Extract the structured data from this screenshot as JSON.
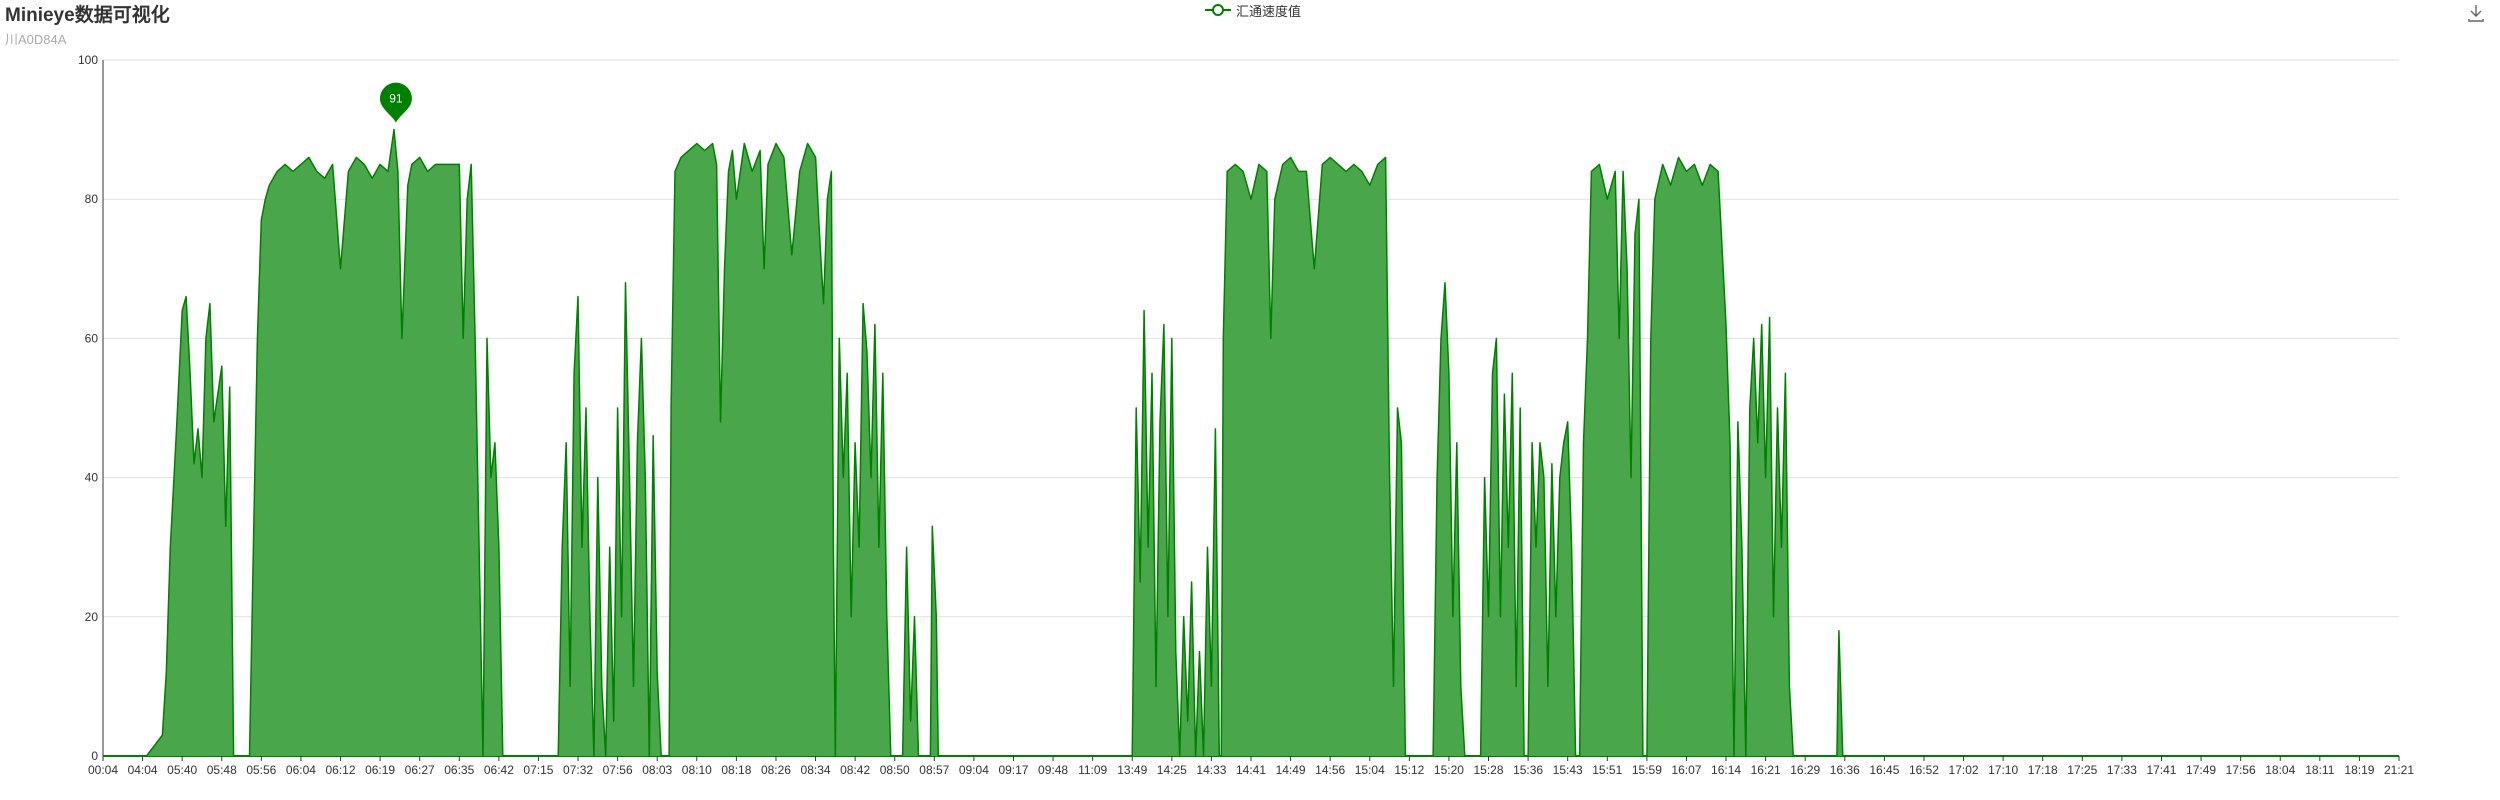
{
  "title": "Minieye数据可视化",
  "subtitle": "川A0D84A",
  "legend": {
    "label": "汇通速度值",
    "icon": "line-circle-icon"
  },
  "toolbar": {
    "download_icon": "download-icon"
  },
  "colors": {
    "series": "#008000",
    "area": "#4aa64a",
    "grid": "#e0e0e0",
    "axis": "#333333"
  },
  "chart_data": {
    "type": "area",
    "title": "Minieye数据可视化",
    "subtitle": "川A0D84A",
    "xlabel": "",
    "ylabel": "",
    "ylim": [
      0,
      100
    ],
    "yticks": [
      0,
      20,
      40,
      60,
      80,
      100
    ],
    "grid": true,
    "legend_position": "top-center",
    "xticks": [
      "00:04",
      "04:04",
      "05:40",
      "05:48",
      "05:56",
      "06:04",
      "06:12",
      "06:19",
      "06:27",
      "06:35",
      "06:42",
      "07:15",
      "07:32",
      "07:56",
      "08:03",
      "08:10",
      "08:18",
      "08:26",
      "08:34",
      "08:42",
      "08:50",
      "08:57",
      "09:04",
      "09:17",
      "09:48",
      "11:09",
      "13:49",
      "14:25",
      "14:33",
      "14:41",
      "14:49",
      "14:56",
      "15:04",
      "15:12",
      "15:20",
      "15:28",
      "15:36",
      "15:43",
      "15:51",
      "15:59",
      "16:07",
      "16:14",
      "16:21",
      "16:29",
      "16:36",
      "16:45",
      "16:52",
      "17:02",
      "17:10",
      "17:18",
      "17:25",
      "17:33",
      "17:41",
      "17:49",
      "17:56",
      "18:04",
      "18:11",
      "18:19",
      "21:21"
    ],
    "max_marker": {
      "x_tick_index": 7.4,
      "value": 91,
      "label": "91"
    },
    "series": [
      {
        "name": "汇通速度值",
        "points": [
          [
            0,
            0
          ],
          [
            1.1,
            0
          ],
          [
            1.5,
            3
          ],
          [
            1.6,
            12
          ],
          [
            1.7,
            30
          ],
          [
            1.85,
            46
          ],
          [
            2.0,
            64
          ],
          [
            2.1,
            66
          ],
          [
            2.2,
            55
          ],
          [
            2.3,
            42
          ],
          [
            2.4,
            47
          ],
          [
            2.5,
            40
          ],
          [
            2.6,
            60
          ],
          [
            2.7,
            65
          ],
          [
            2.8,
            48
          ],
          [
            2.9,
            52
          ],
          [
            3.0,
            56
          ],
          [
            3.1,
            33
          ],
          [
            3.2,
            53
          ],
          [
            3.3,
            0
          ],
          [
            3.7,
            0
          ],
          [
            3.8,
            30
          ],
          [
            3.9,
            60
          ],
          [
            4.0,
            77
          ],
          [
            4.1,
            80
          ],
          [
            4.2,
            82
          ],
          [
            4.4,
            84
          ],
          [
            4.6,
            85
          ],
          [
            4.8,
            84
          ],
          [
            5.0,
            85
          ],
          [
            5.2,
            86
          ],
          [
            5.4,
            84
          ],
          [
            5.6,
            83
          ],
          [
            5.8,
            85
          ],
          [
            6.0,
            70
          ],
          [
            6.2,
            84
          ],
          [
            6.4,
            86
          ],
          [
            6.6,
            85
          ],
          [
            6.8,
            83
          ],
          [
            7.0,
            85
          ],
          [
            7.2,
            84
          ],
          [
            7.35,
            90
          ],
          [
            7.45,
            84
          ],
          [
            7.55,
            60
          ],
          [
            7.7,
            82
          ],
          [
            7.8,
            85
          ],
          [
            8.0,
            86
          ],
          [
            8.2,
            84
          ],
          [
            8.4,
            85
          ],
          [
            8.6,
            85
          ],
          [
            8.8,
            85
          ],
          [
            9.0,
            85
          ],
          [
            9.1,
            60
          ],
          [
            9.2,
            80
          ],
          [
            9.3,
            85
          ],
          [
            9.4,
            60
          ],
          [
            9.5,
            30
          ],
          [
            9.6,
            0
          ],
          [
            9.7,
            60
          ],
          [
            9.8,
            40
          ],
          [
            9.9,
            45
          ],
          [
            10.0,
            30
          ],
          [
            10.1,
            0
          ],
          [
            11.5,
            0
          ],
          [
            11.6,
            30
          ],
          [
            11.7,
            45
          ],
          [
            11.8,
            10
          ],
          [
            11.9,
            55
          ],
          [
            12.0,
            66
          ],
          [
            12.1,
            30
          ],
          [
            12.2,
            50
          ],
          [
            12.3,
            20
          ],
          [
            12.4,
            0
          ],
          [
            12.5,
            40
          ],
          [
            12.6,
            10
          ],
          [
            12.7,
            0
          ],
          [
            12.8,
            30
          ],
          [
            12.9,
            5
          ],
          [
            13.0,
            50
          ],
          [
            13.1,
            20
          ],
          [
            13.2,
            68
          ],
          [
            13.3,
            40
          ],
          [
            13.4,
            10
          ],
          [
            13.5,
            45
          ],
          [
            13.6,
            60
          ],
          [
            13.7,
            40
          ],
          [
            13.8,
            0
          ],
          [
            13.9,
            46
          ],
          [
            14.0,
            12
          ],
          [
            14.1,
            0
          ],
          [
            14.3,
            0
          ],
          [
            14.35,
            50
          ],
          [
            14.45,
            84
          ],
          [
            14.6,
            86
          ],
          [
            14.8,
            87
          ],
          [
            15.0,
            88
          ],
          [
            15.2,
            87
          ],
          [
            15.4,
            88
          ],
          [
            15.5,
            85
          ],
          [
            15.6,
            48
          ],
          [
            15.7,
            70
          ],
          [
            15.8,
            84
          ],
          [
            15.9,
            87
          ],
          [
            16.0,
            80
          ],
          [
            16.2,
            88
          ],
          [
            16.4,
            84
          ],
          [
            16.6,
            87
          ],
          [
            16.7,
            70
          ],
          [
            16.8,
            85
          ],
          [
            17.0,
            88
          ],
          [
            17.2,
            86
          ],
          [
            17.4,
            72
          ],
          [
            17.6,
            84
          ],
          [
            17.8,
            88
          ],
          [
            18.0,
            86
          ],
          [
            18.1,
            75
          ],
          [
            18.2,
            65
          ],
          [
            18.3,
            80
          ],
          [
            18.4,
            84
          ],
          [
            18.45,
            30
          ],
          [
            18.5,
            0
          ],
          [
            18.6,
            60
          ],
          [
            18.7,
            40
          ],
          [
            18.8,
            55
          ],
          [
            18.9,
            20
          ],
          [
            19.0,
            45
          ],
          [
            19.1,
            30
          ],
          [
            19.2,
            65
          ],
          [
            19.3,
            58
          ],
          [
            19.4,
            40
          ],
          [
            19.5,
            62
          ],
          [
            19.6,
            30
          ],
          [
            19.7,
            55
          ],
          [
            19.8,
            20
          ],
          [
            19.9,
            0
          ],
          [
            20.2,
            0
          ],
          [
            20.3,
            30
          ],
          [
            20.4,
            5
          ],
          [
            20.5,
            20
          ],
          [
            20.6,
            0
          ],
          [
            20.9,
            0
          ],
          [
            20.95,
            33
          ],
          [
            21.05,
            20
          ],
          [
            21.1,
            0
          ],
          [
            26.0,
            0
          ],
          [
            26.1,
            50
          ],
          [
            26.2,
            25
          ],
          [
            26.3,
            64
          ],
          [
            26.4,
            30
          ],
          [
            26.5,
            55
          ],
          [
            26.6,
            10
          ],
          [
            26.7,
            48
          ],
          [
            26.8,
            62
          ],
          [
            26.9,
            20
          ],
          [
            27.0,
            60
          ],
          [
            27.1,
            15
          ],
          [
            27.2,
            0
          ],
          [
            27.3,
            20
          ],
          [
            27.4,
            5
          ],
          [
            27.5,
            25
          ],
          [
            27.6,
            0
          ],
          [
            27.7,
            15
          ],
          [
            27.8,
            0
          ],
          [
            27.9,
            30
          ],
          [
            28.0,
            10
          ],
          [
            28.1,
            47
          ],
          [
            28.2,
            0
          ],
          [
            28.25,
            0
          ],
          [
            28.3,
            60
          ],
          [
            28.4,
            84
          ],
          [
            28.6,
            85
          ],
          [
            28.8,
            84
          ],
          [
            29.0,
            80
          ],
          [
            29.2,
            85
          ],
          [
            29.4,
            84
          ],
          [
            29.5,
            60
          ],
          [
            29.6,
            80
          ],
          [
            29.8,
            85
          ],
          [
            30.0,
            86
          ],
          [
            30.2,
            84
          ],
          [
            30.4,
            84
          ],
          [
            30.6,
            70
          ],
          [
            30.8,
            85
          ],
          [
            31.0,
            86
          ],
          [
            31.2,
            85
          ],
          [
            31.4,
            84
          ],
          [
            31.6,
            85
          ],
          [
            31.8,
            84
          ],
          [
            32.0,
            82
          ],
          [
            32.2,
            85
          ],
          [
            32.4,
            86
          ],
          [
            32.5,
            40
          ],
          [
            32.6,
            10
          ],
          [
            32.7,
            50
          ],
          [
            32.8,
            45
          ],
          [
            32.9,
            0
          ],
          [
            33.6,
            0
          ],
          [
            33.7,
            40
          ],
          [
            33.8,
            60
          ],
          [
            33.9,
            68
          ],
          [
            34.0,
            55
          ],
          [
            34.1,
            20
          ],
          [
            34.2,
            45
          ],
          [
            34.3,
            10
          ],
          [
            34.4,
            0
          ],
          [
            34.8,
            0
          ],
          [
            34.9,
            40
          ],
          [
            35.0,
            20
          ],
          [
            35.1,
            55
          ],
          [
            35.2,
            60
          ],
          [
            35.3,
            20
          ],
          [
            35.4,
            52
          ],
          [
            35.5,
            30
          ],
          [
            35.6,
            55
          ],
          [
            35.7,
            10
          ],
          [
            35.8,
            50
          ],
          [
            35.9,
            0
          ],
          [
            36.0,
            0
          ],
          [
            36.1,
            45
          ],
          [
            36.2,
            30
          ],
          [
            36.3,
            45
          ],
          [
            36.4,
            40
          ],
          [
            36.5,
            10
          ],
          [
            36.6,
            42
          ],
          [
            36.7,
            20
          ],
          [
            36.8,
            40
          ],
          [
            36.9,
            45
          ],
          [
            37.0,
            48
          ],
          [
            37.1,
            30
          ],
          [
            37.2,
            0
          ],
          [
            37.3,
            0
          ],
          [
            37.4,
            45
          ],
          [
            37.5,
            60
          ],
          [
            37.6,
            84
          ],
          [
            37.8,
            85
          ],
          [
            38.0,
            80
          ],
          [
            38.2,
            84
          ],
          [
            38.3,
            60
          ],
          [
            38.4,
            84
          ],
          [
            38.5,
            70
          ],
          [
            38.6,
            40
          ],
          [
            38.7,
            75
          ],
          [
            38.8,
            80
          ],
          [
            38.9,
            0
          ],
          [
            39.0,
            0
          ],
          [
            39.1,
            60
          ],
          [
            39.2,
            80
          ],
          [
            39.4,
            85
          ],
          [
            39.6,
            82
          ],
          [
            39.8,
            86
          ],
          [
            40.0,
            84
          ],
          [
            40.2,
            85
          ],
          [
            40.4,
            82
          ],
          [
            40.6,
            85
          ],
          [
            40.8,
            84
          ],
          [
            41.0,
            62
          ],
          [
            41.1,
            45
          ],
          [
            41.2,
            0
          ],
          [
            41.3,
            48
          ],
          [
            41.4,
            30
          ],
          [
            41.5,
            0
          ],
          [
            41.6,
            50
          ],
          [
            41.7,
            60
          ],
          [
            41.8,
            45
          ],
          [
            41.9,
            62
          ],
          [
            42.0,
            40
          ],
          [
            42.1,
            63
          ],
          [
            42.2,
            20
          ],
          [
            42.3,
            50
          ],
          [
            42.4,
            30
          ],
          [
            42.5,
            55
          ],
          [
            42.6,
            10
          ],
          [
            42.7,
            0
          ],
          [
            43.8,
            0
          ],
          [
            43.85,
            18
          ],
          [
            43.95,
            0
          ],
          [
            45.0,
            0
          ]
        ]
      }
    ]
  }
}
